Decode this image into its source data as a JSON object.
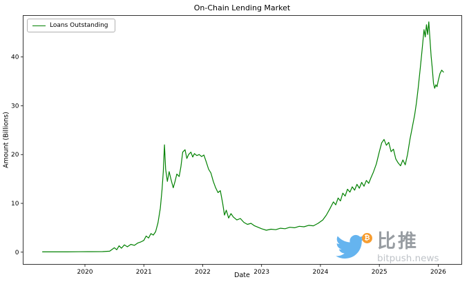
{
  "chart_data": {
    "type": "line",
    "title": "On-Chain Lending Market",
    "xlabel": "Date",
    "ylabel": "Amount (Billions)",
    "legend_label": "Loans Outstanding",
    "line_color": "#008000",
    "grid": false,
    "legend_position": "upper-left",
    "x_ticks": [
      2020,
      2021,
      2022,
      2023,
      2024,
      2025,
      2026
    ],
    "y_ticks": [
      0,
      10,
      20,
      30,
      40
    ],
    "xlim": [
      2018.95,
      2026.4
    ],
    "ylim": [
      -2.5,
      48.5
    ],
    "series": [
      {
        "name": "Loans Outstanding",
        "points": [
          [
            2019.28,
            0.05
          ],
          [
            2019.5,
            0.05
          ],
          [
            2019.7,
            0.06
          ],
          [
            2019.9,
            0.08
          ],
          [
            2020.1,
            0.1
          ],
          [
            2020.3,
            0.12
          ],
          [
            2020.42,
            0.2
          ],
          [
            2020.5,
            0.9
          ],
          [
            2020.54,
            0.5
          ],
          [
            2020.58,
            1.3
          ],
          [
            2020.62,
            0.8
          ],
          [
            2020.67,
            1.5
          ],
          [
            2020.72,
            1.1
          ],
          [
            2020.78,
            1.6
          ],
          [
            2020.84,
            1.4
          ],
          [
            2020.9,
            1.9
          ],
          [
            2020.95,
            2.1
          ],
          [
            2021.0,
            2.4
          ],
          [
            2021.04,
            3.3
          ],
          [
            2021.08,
            2.9
          ],
          [
            2021.12,
            3.8
          ],
          [
            2021.16,
            3.5
          ],
          [
            2021.2,
            4.2
          ],
          [
            2021.24,
            6.0
          ],
          [
            2021.28,
            9.0
          ],
          [
            2021.31,
            13.0
          ],
          [
            2021.33,
            16.5
          ],
          [
            2021.35,
            22.0
          ],
          [
            2021.37,
            17.0
          ],
          [
            2021.4,
            14.5
          ],
          [
            2021.43,
            16.5
          ],
          [
            2021.46,
            15.0
          ],
          [
            2021.5,
            13.2
          ],
          [
            2021.53,
            14.5
          ],
          [
            2021.56,
            16.0
          ],
          [
            2021.6,
            15.5
          ],
          [
            2021.63,
            17.5
          ],
          [
            2021.66,
            20.5
          ],
          [
            2021.7,
            21.0
          ],
          [
            2021.73,
            19.2
          ],
          [
            2021.76,
            20.0
          ],
          [
            2021.8,
            20.5
          ],
          [
            2021.83,
            19.5
          ],
          [
            2021.86,
            20.2
          ],
          [
            2021.9,
            19.8
          ],
          [
            2021.94,
            20.0
          ],
          [
            2021.98,
            19.6
          ],
          [
            2022.02,
            19.9
          ],
          [
            2022.06,
            18.5
          ],
          [
            2022.1,
            17.0
          ],
          [
            2022.14,
            16.2
          ],
          [
            2022.18,
            14.5
          ],
          [
            2022.22,
            13.2
          ],
          [
            2022.26,
            12.2
          ],
          [
            2022.3,
            12.6
          ],
          [
            2022.34,
            10.0
          ],
          [
            2022.37,
            7.6
          ],
          [
            2022.4,
            8.6
          ],
          [
            2022.44,
            7.0
          ],
          [
            2022.48,
            7.9
          ],
          [
            2022.52,
            7.2
          ],
          [
            2022.58,
            6.6
          ],
          [
            2022.64,
            6.9
          ],
          [
            2022.7,
            6.1
          ],
          [
            2022.76,
            5.7
          ],
          [
            2022.82,
            5.9
          ],
          [
            2022.88,
            5.4
          ],
          [
            2022.94,
            5.1
          ],
          [
            2023.0,
            4.8
          ],
          [
            2023.08,
            4.5
          ],
          [
            2023.16,
            4.7
          ],
          [
            2023.24,
            4.6
          ],
          [
            2023.32,
            4.9
          ],
          [
            2023.4,
            4.8
          ],
          [
            2023.48,
            5.1
          ],
          [
            2023.56,
            5.0
          ],
          [
            2023.64,
            5.3
          ],
          [
            2023.72,
            5.2
          ],
          [
            2023.8,
            5.5
          ],
          [
            2023.88,
            5.4
          ],
          [
            2023.96,
            5.9
          ],
          [
            2024.04,
            6.6
          ],
          [
            2024.1,
            7.6
          ],
          [
            2024.16,
            8.9
          ],
          [
            2024.22,
            10.3
          ],
          [
            2024.26,
            9.7
          ],
          [
            2024.3,
            11.1
          ],
          [
            2024.34,
            10.5
          ],
          [
            2024.38,
            12.1
          ],
          [
            2024.42,
            11.5
          ],
          [
            2024.46,
            12.9
          ],
          [
            2024.5,
            12.3
          ],
          [
            2024.54,
            13.4
          ],
          [
            2024.58,
            12.7
          ],
          [
            2024.62,
            13.9
          ],
          [
            2024.66,
            13.1
          ],
          [
            2024.7,
            14.3
          ],
          [
            2024.74,
            13.5
          ],
          [
            2024.78,
            14.7
          ],
          [
            2024.82,
            14.1
          ],
          [
            2024.86,
            15.3
          ],
          [
            2024.9,
            16.4
          ],
          [
            2024.95,
            18.1
          ],
          [
            2025.0,
            20.6
          ],
          [
            2025.04,
            22.4
          ],
          [
            2025.08,
            23.1
          ],
          [
            2025.12,
            21.9
          ],
          [
            2025.16,
            22.5
          ],
          [
            2025.2,
            20.6
          ],
          [
            2025.24,
            21.1
          ],
          [
            2025.28,
            19.1
          ],
          [
            2025.32,
            18.3
          ],
          [
            2025.36,
            17.7
          ],
          [
            2025.4,
            18.9
          ],
          [
            2025.44,
            17.9
          ],
          [
            2025.48,
            20.1
          ],
          [
            2025.52,
            23.1
          ],
          [
            2025.56,
            25.6
          ],
          [
            2025.6,
            28.1
          ],
          [
            2025.63,
            30.6
          ],
          [
            2025.66,
            33.6
          ],
          [
            2025.69,
            37.1
          ],
          [
            2025.72,
            40.6
          ],
          [
            2025.74,
            43.1
          ],
          [
            2025.76,
            45.6
          ],
          [
            2025.78,
            44.1
          ],
          [
            2025.8,
            46.6
          ],
          [
            2025.82,
            44.6
          ],
          [
            2025.84,
            47.2
          ],
          [
            2025.86,
            43.6
          ],
          [
            2025.88,
            40.1
          ],
          [
            2025.9,
            37.6
          ],
          [
            2025.92,
            34.6
          ],
          [
            2025.94,
            33.6
          ],
          [
            2025.96,
            34.3
          ],
          [
            2025.98,
            33.9
          ],
          [
            2026.0,
            35.1
          ],
          [
            2026.03,
            36.6
          ],
          [
            2026.06,
            37.3
          ],
          [
            2026.09,
            36.9
          ]
        ]
      }
    ]
  },
  "watermark": {
    "cn_text": "比推",
    "site_text": "bitpush.news",
    "coin_symbol": "₿",
    "bird_color": "#55acee",
    "coin_color": "#f7931a",
    "text_color": "#8d9399"
  }
}
